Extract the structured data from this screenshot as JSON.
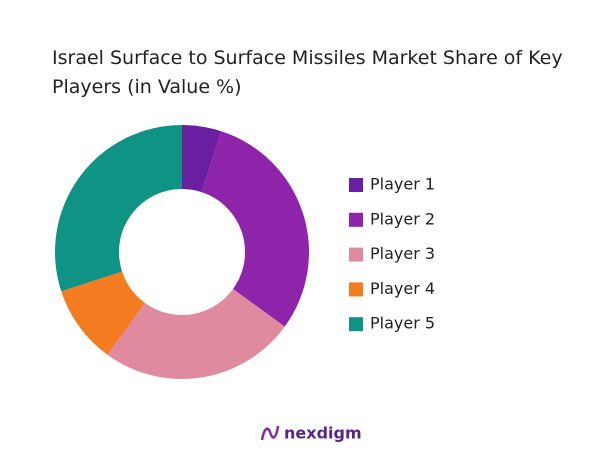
{
  "chart_data": {
    "type": "pie",
    "title": "Israel Surface to Surface Missiles Market Share of Key Players (in Value %)",
    "categories": [
      "Player 1",
      "Player 2",
      "Player 3",
      "Player 4",
      "Player 5"
    ],
    "values": [
      5,
      30,
      25,
      10,
      30
    ],
    "colors": [
      "#6a1fa0",
      "#8e24aa",
      "#e08aa0",
      "#f47c20",
      "#0e9384"
    ],
    "donut": true,
    "legend": "right"
  },
  "logo": "nexdigm"
}
